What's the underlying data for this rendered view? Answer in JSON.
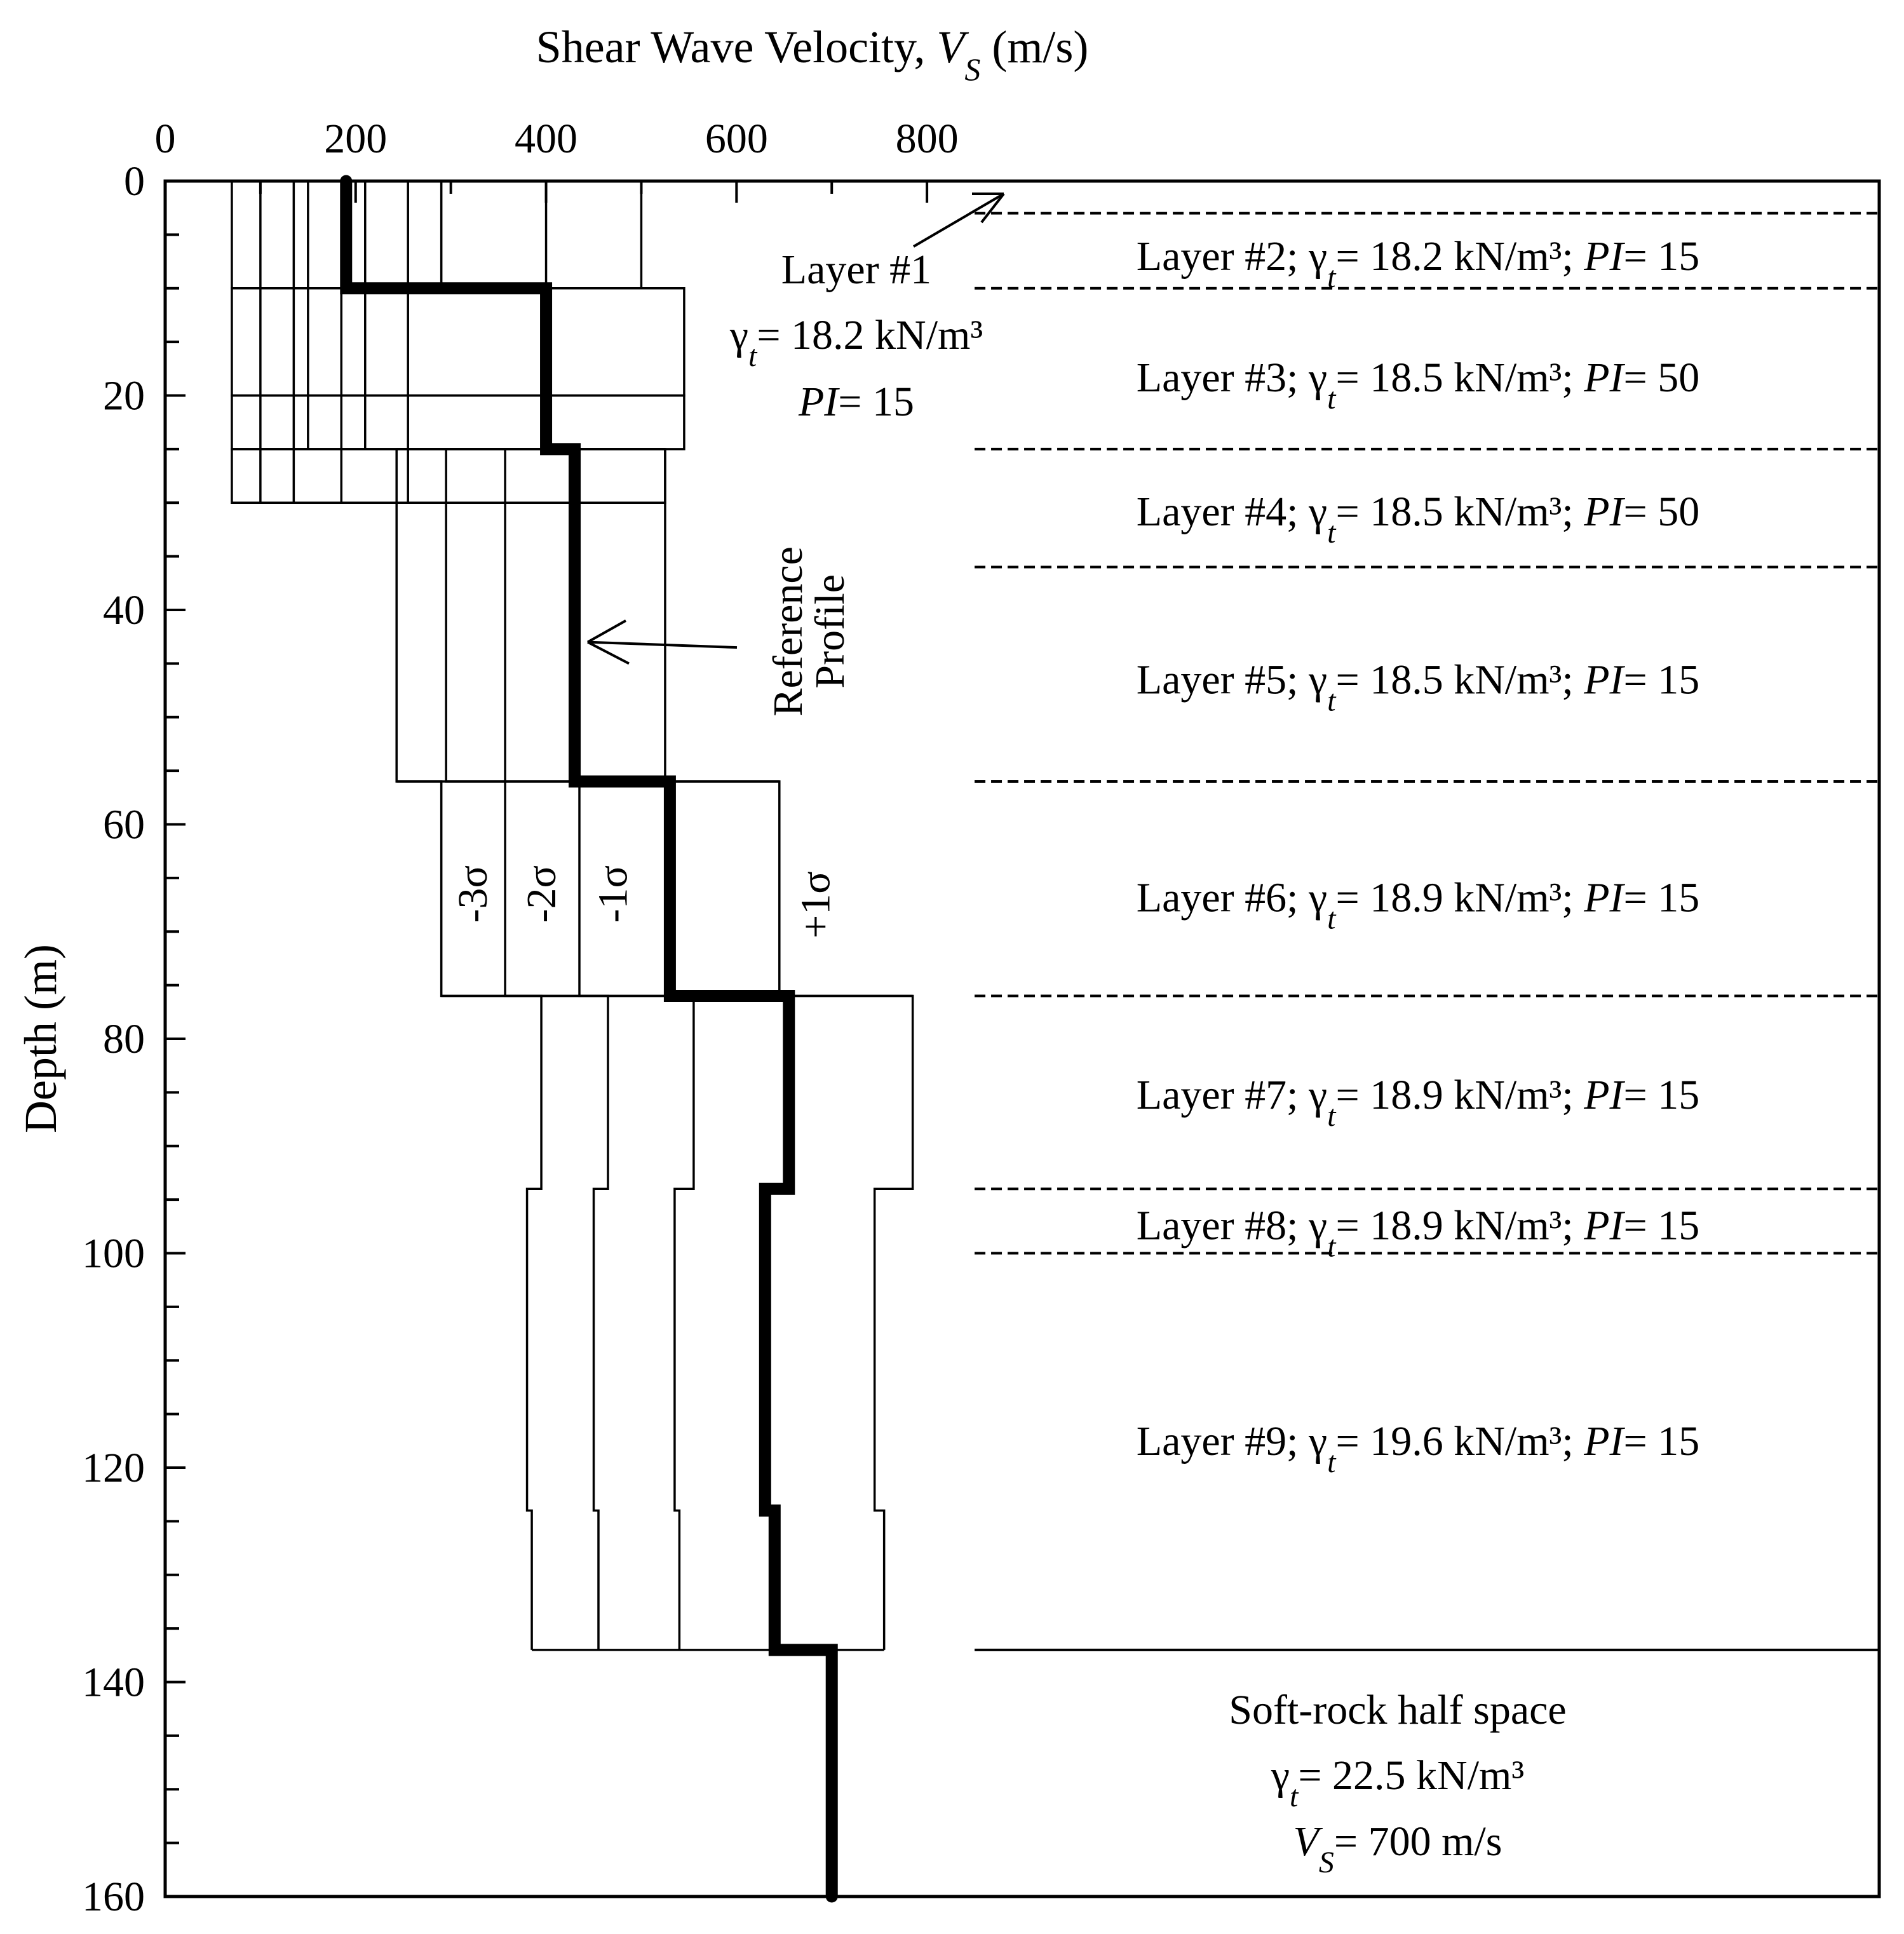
{
  "chart_data": {
    "type": "line",
    "title": "",
    "xlabel": {
      "main": "Shear Wave Velocity, ",
      "var": "V",
      "sub": "S",
      "unit": " (m/s)"
    },
    "ylabel": "Depth (m)",
    "xlim": [
      0,
      1800
    ],
    "ylim": [
      0,
      160
    ],
    "x_ticks": [
      0,
      200,
      400,
      600,
      800
    ],
    "y_ticks": [
      0,
      20,
      40,
      60,
      80,
      100,
      120,
      140,
      160
    ],
    "reference_profile": {
      "name": "Reference Profile",
      "steps": [
        {
          "top": 0,
          "bottom": 10,
          "vs": 190
        },
        {
          "top": 10,
          "bottom": 25,
          "vs": 400
        },
        {
          "top": 25,
          "bottom": 56,
          "vs": 430
        },
        {
          "top": 56,
          "bottom": 76,
          "vs": 530
        },
        {
          "top": 76,
          "bottom": 94,
          "vs": 655
        },
        {
          "top": 94,
          "bottom": 124,
          "vs": 630
        },
        {
          "top": 124,
          "bottom": 137,
          "vs": 640
        },
        {
          "top": 137,
          "bottom": 160,
          "vs": 700
        }
      ]
    },
    "sigma_profiles": [
      {
        "name": "-3σ",
        "steps": [
          {
            "top": 25,
            "bottom": 56,
            "vs": 243
          },
          {
            "top": 56,
            "bottom": 76,
            "vs": 290
          },
          {
            "top": 76,
            "bottom": 94,
            "vs": 395
          },
          {
            "top": 94,
            "bottom": 124,
            "vs": 380
          },
          {
            "top": 124,
            "bottom": 137,
            "vs": 385
          }
        ]
      },
      {
        "name": "-2σ",
        "steps": [
          {
            "top": 25,
            "bottom": 56,
            "vs": 295
          },
          {
            "top": 56,
            "bottom": 76,
            "vs": 357
          },
          {
            "top": 76,
            "bottom": 94,
            "vs": 465
          },
          {
            "top": 94,
            "bottom": 124,
            "vs": 450
          },
          {
            "top": 124,
            "bottom": 137,
            "vs": 455
          }
        ]
      },
      {
        "name": "-1σ",
        "steps": [
          {
            "top": 25,
            "bottom": 56,
            "vs": 357
          },
          {
            "top": 56,
            "bottom": 76,
            "vs": 435
          },
          {
            "top": 76,
            "bottom": 94,
            "vs": 555
          },
          {
            "top": 94,
            "bottom": 124,
            "vs": 535
          },
          {
            "top": 124,
            "bottom": 137,
            "vs": 540
          }
        ]
      },
      {
        "name": "+1σ",
        "steps": [
          {
            "top": 25,
            "bottom": 56,
            "vs": 525
          },
          {
            "top": 56,
            "bottom": 76,
            "vs": 645
          },
          {
            "top": 76,
            "bottom": 94,
            "vs": 785
          },
          {
            "top": 94,
            "bottom": 124,
            "vs": 745
          },
          {
            "top": 124,
            "bottom": 137,
            "vs": 755
          }
        ]
      }
    ],
    "upper_grid": {
      "boxes": [
        {
          "top": 0,
          "bottom": 10,
          "vs_min": 70,
          "vs_max": 500
        },
        {
          "top": 10,
          "bottom": 20,
          "vs_min": 70,
          "vs_max": 545
        },
        {
          "top": 20,
          "bottom": 25,
          "vs_min": 70,
          "vs_max": 545
        },
        {
          "top": 25,
          "bottom": 30,
          "vs_min": 70,
          "vs_max": 525
        }
      ],
      "verticals": [
        {
          "vs": 100,
          "top": 0,
          "bottom": 30
        },
        {
          "vs": 135,
          "top": 0,
          "bottom": 30
        },
        {
          "vs": 150,
          "top": 0,
          "bottom": 25
        },
        {
          "vs": 185,
          "top": 0,
          "bottom": 30
        },
        {
          "vs": 210,
          "top": 0,
          "bottom": 25
        },
        {
          "vs": 255,
          "top": 0,
          "bottom": 30
        },
        {
          "vs": 290,
          "top": 0,
          "bottom": 10
        },
        {
          "vs": 400,
          "top": 0,
          "bottom": 10
        }
      ]
    },
    "layer_boundaries": [
      {
        "depth": 3,
        "style": "dashed"
      },
      {
        "depth": 10,
        "style": "dashed"
      },
      {
        "depth": 25,
        "style": "dashed"
      },
      {
        "depth": 36,
        "style": "dashed"
      },
      {
        "depth": 56,
        "style": "dashed"
      },
      {
        "depth": 76,
        "style": "dashed"
      },
      {
        "depth": 94,
        "style": "dashed"
      },
      {
        "depth": 100,
        "style": "dashed"
      },
      {
        "depth": 137,
        "style": "solid"
      }
    ],
    "layer_labels": [
      {
        "depth": 7,
        "name": "Layer #2; ",
        "gamma": "18.2",
        "pi": "15"
      },
      {
        "depth": 18.3,
        "name": "Layer #3; ",
        "gamma": "18.5",
        "pi": "50"
      },
      {
        "depth": 30.8,
        "name": "Layer #4; ",
        "gamma": "18.5",
        "pi": "50"
      },
      {
        "depth": 46.5,
        "name": "Layer #5; ",
        "gamma": "18.5",
        "pi": "15"
      },
      {
        "depth": 66.8,
        "name": "Layer #6; ",
        "gamma": "18.9",
        "pi": "15"
      },
      {
        "depth": 85.2,
        "name": "Layer #7; ",
        "gamma": "18.9",
        "pi": "15"
      },
      {
        "depth": 97.4,
        "name": "Layer #8; ",
        "gamma": "18.9",
        "pi": "15"
      },
      {
        "depth": 117.5,
        "name": "Layer #9; ",
        "gamma": "19.6",
        "pi": "15"
      }
    ],
    "annotations": {
      "layer1_title": "Layer #1",
      "layer1_gamma": "18.2",
      "layer1_pi": "15",
      "reference_line1": "Reference",
      "reference_line2": "Profile",
      "sigma_labels": [
        "-3σ",
        "-2σ",
        "-1σ",
        "+1σ"
      ],
      "halfspace_title": "Soft-rock half space",
      "halfspace_gamma": "22.5",
      "halfspace_vs": "700"
    },
    "text_parts": {
      "gamma": "γ",
      "gamma_sub": "t",
      "eq": "= ",
      "unit": " kN/m³",
      "sep": "; ",
      "pi": "PI",
      "v": "V",
      "v_sub": "S",
      "ms": " m/s"
    }
  }
}
